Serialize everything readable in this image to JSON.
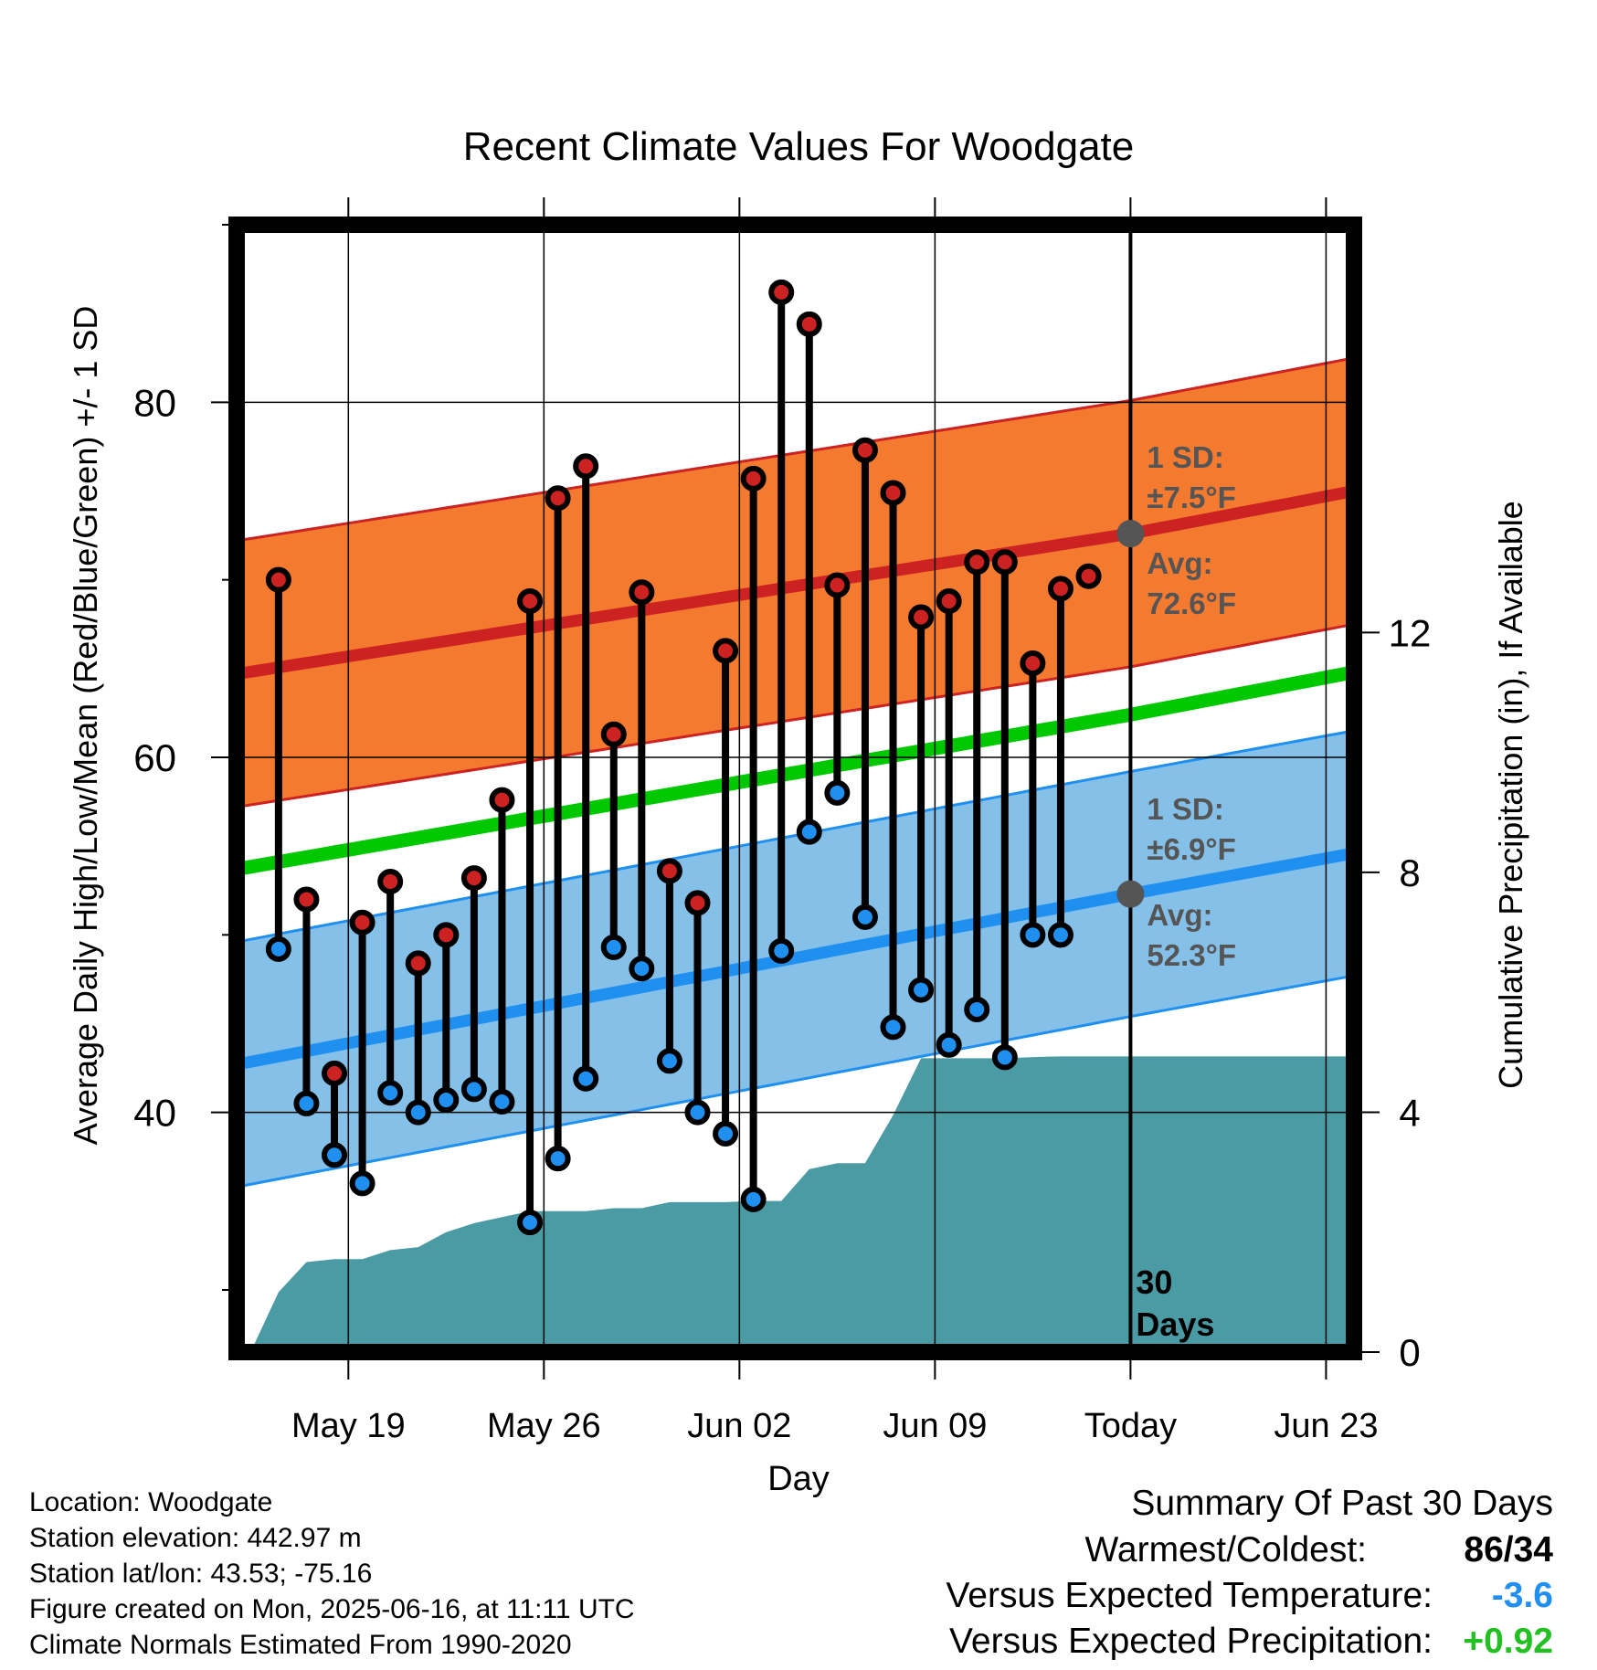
{
  "chart_data": {
    "type": "line",
    "title": "Recent Climate Values For Woodgate",
    "xlabel": "Day",
    "ylabel": "Average Daily High/Low/Mean (Red/Blue/Green) +/- 1 SD",
    "y2label": "Cumulative Precipitation (in), If Available",
    "x_start": "2025-05-16",
    "xlim": [
      "2025-05-15",
      "2025-06-24"
    ],
    "ylim": [
      26.5,
      90
    ],
    "y2lim": [
      0,
      18.8
    ],
    "x_ticks": [
      "2025-05-19",
      "2025-05-26",
      "2025-06-02",
      "2025-06-09",
      "2025-06-16",
      "2025-06-23"
    ],
    "x_tick_labels": [
      "May 19",
      "May 26",
      "Jun 02",
      "Jun 09",
      "Today",
      "Jun 23"
    ],
    "y_ticks": [
      40,
      60,
      80
    ],
    "y_minor_ticks": [
      30,
      50,
      70,
      90
    ],
    "y2_ticks": [
      0,
      4,
      8,
      12
    ],
    "grid": true,
    "today": "2025-06-16",
    "today_label": "30\nDays",
    "series": [
      {
        "name": "High",
        "color": "#cc2222",
        "values": [
          70.0,
          52.0,
          42.2,
          50.7,
          53.0,
          48.4,
          50.0,
          53.2,
          57.6,
          68.8,
          74.6,
          76.4,
          61.3,
          69.3,
          53.6,
          51.8,
          66.0,
          75.7,
          86.2,
          84.4,
          69.7,
          77.3,
          74.9,
          67.9,
          68.8,
          71.0,
          71.0,
          65.3,
          69.5,
          70.2
        ]
      },
      {
        "name": "Low",
        "color": "#2090f0",
        "values": [
          49.2,
          40.5,
          37.6,
          36.0,
          41.1,
          40.0,
          40.7,
          41.3,
          40.6,
          33.8,
          37.4,
          41.9,
          49.3,
          48.1,
          42.9,
          40.0,
          38.8,
          35.1,
          49.1,
          55.8,
          58.0,
          51.0,
          44.8,
          46.9,
          43.8,
          45.8,
          43.1,
          50.0,
          50.0,
          null
        ]
      }
    ],
    "normals": {
      "dates": [
        "2025-05-15",
        "2025-06-16",
        "2025-06-24"
      ],
      "avg_high": [
        64.7,
        72.6,
        75.0
      ],
      "avg_low": [
        42.7,
        52.3,
        54.6
      ],
      "avg_mean": [
        53.7,
        62.4,
        64.8
      ],
      "high_sd": 7.5,
      "low_sd": 6.9,
      "high_color": "#f47a30",
      "low_color": "#85c0e8",
      "mean_color": "#00c800"
    },
    "precip": {
      "color": "#4a9ba4",
      "values": [
        0.0,
        1.0,
        1.5,
        1.55,
        1.55,
        1.7,
        1.75,
        2.0,
        2.15,
        2.25,
        2.35,
        2.35,
        2.35,
        2.4,
        2.4,
        2.5,
        2.5,
        2.5,
        2.52,
        2.52,
        3.05,
        3.15,
        3.15,
        3.95,
        4.9,
        4.9,
        4.9,
        4.9,
        4.92,
        4.93,
        4.93,
        4.93,
        4.93
      ]
    },
    "annotations": {
      "high_sd_label": "1 SD:",
      "high_sd_value": "±7.5°F",
      "high_avg_label": "Avg:",
      "high_avg_value": "72.6°F",
      "low_sd_label": "1 SD:",
      "low_sd_value": "±6.9°F",
      "low_avg_label": "Avg:",
      "low_avg_value": "52.3°F",
      "text_color": "#555555"
    }
  },
  "info": {
    "location": "Location: Woodgate",
    "elevation": "Station elevation: 442.97 m",
    "latlon": "Station lat/lon: 43.53; -75.16",
    "created": "Figure created on Mon, 2025-06-16, at 11:11 UTC",
    "normals": "Climate Normals Estimated From 1990-2020"
  },
  "summary": {
    "title": "Summary Of Past 30 Days",
    "warmest_label": "Warmest/Coldest:",
    "warmest_value": "86/34",
    "temp_label": "Versus Expected Temperature:",
    "temp_value": "-3.6",
    "temp_color": "#2090f0",
    "precip_label": "Versus Expected Precipitation:",
    "precip_value": "+0.92",
    "precip_color": "#22c022"
  }
}
